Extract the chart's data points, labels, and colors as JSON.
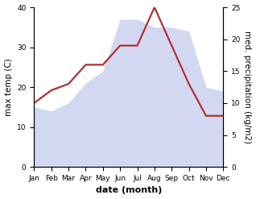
{
  "months": [
    "Jan",
    "Feb",
    "Mar",
    "Apr",
    "May",
    "Jun",
    "Jul",
    "Aug",
    "Sep",
    "Oct",
    "Nov",
    "Dec"
  ],
  "max_temp": [
    15,
    14,
    16,
    21,
    24,
    37,
    37,
    35,
    35,
    34,
    20,
    19
  ],
  "med_precip": [
    10,
    12,
    13,
    16,
    16,
    19,
    19,
    25,
    19,
    13,
    8,
    8
  ],
  "temp_ylim": [
    0,
    40
  ],
  "precip_ylim": [
    0,
    25
  ],
  "temp_yticks": [
    0,
    10,
    20,
    30,
    40
  ],
  "precip_yticks": [
    0,
    5,
    10,
    15,
    20,
    25
  ],
  "fill_color": "#b0b8e8",
  "fill_alpha": 0.55,
  "line_color": "#b03030",
  "line_width": 1.6,
  "xlabel": "date (month)",
  "ylabel_left": "max temp (C)",
  "ylabel_right": "med. precipitation (kg/m2)",
  "xlabel_fontsize": 8,
  "ylabel_fontsize": 7.5,
  "tick_fontsize": 6.5,
  "background_color": "#ffffff"
}
